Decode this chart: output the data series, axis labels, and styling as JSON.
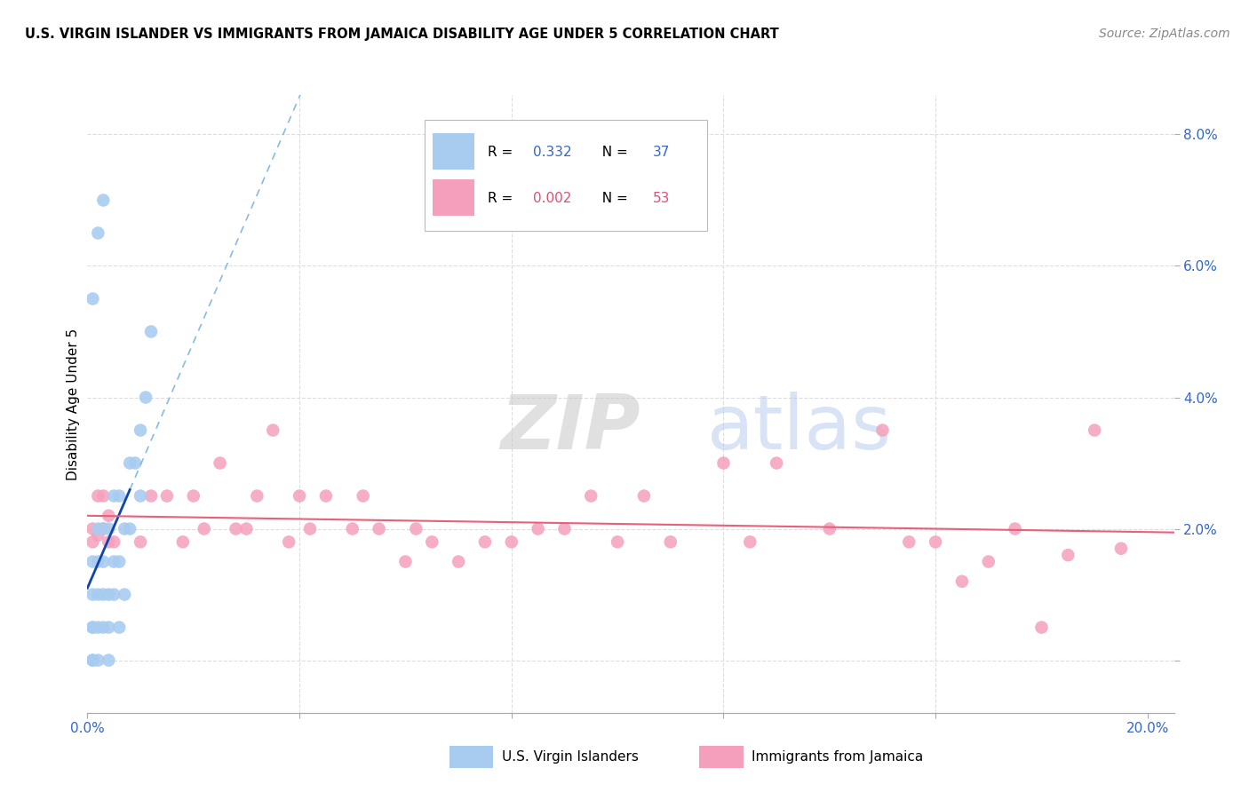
{
  "title": "U.S. VIRGIN ISLANDER VS IMMIGRANTS FROM JAMAICA DISABILITY AGE UNDER 5 CORRELATION CHART",
  "source": "Source: ZipAtlas.com",
  "ylabel": "Disability Age Under 5",
  "blue_R": 0.332,
  "blue_N": 37,
  "pink_R": 0.002,
  "pink_N": 53,
  "blue_label": "U.S. Virgin Islanders",
  "pink_label": "Immigrants from Jamaica",
  "blue_color": "#A8CCF0",
  "pink_color": "#F4A0BC",
  "trend_blue_solid_color": "#1144AA",
  "trend_blue_dash_color": "#88BBDD",
  "trend_pink_color": "#E8607A",
  "blue_x": [
    0.001,
    0.001,
    0.001,
    0.001,
    0.001,
    0.001,
    0.002,
    0.002,
    0.002,
    0.002,
    0.002,
    0.003,
    0.003,
    0.003,
    0.003,
    0.004,
    0.004,
    0.004,
    0.004,
    0.005,
    0.005,
    0.005,
    0.006,
    0.006,
    0.006,
    0.007,
    0.007,
    0.008,
    0.008,
    0.009,
    0.01,
    0.01,
    0.011,
    0.012,
    0.001,
    0.002,
    0.003
  ],
  "blue_y": [
    0.0,
    0.0,
    0.005,
    0.005,
    0.01,
    0.015,
    0.0,
    0.005,
    0.01,
    0.015,
    0.02,
    0.005,
    0.01,
    0.015,
    0.02,
    0.0,
    0.005,
    0.01,
    0.02,
    0.01,
    0.015,
    0.025,
    0.005,
    0.015,
    0.025,
    0.01,
    0.02,
    0.02,
    0.03,
    0.03,
    0.025,
    0.035,
    0.04,
    0.05,
    0.055,
    0.065,
    0.07
  ],
  "pink_x": [
    0.001,
    0.001,
    0.002,
    0.002,
    0.003,
    0.003,
    0.004,
    0.004,
    0.005,
    0.01,
    0.012,
    0.015,
    0.018,
    0.02,
    0.022,
    0.025,
    0.028,
    0.03,
    0.032,
    0.035,
    0.038,
    0.04,
    0.042,
    0.045,
    0.05,
    0.052,
    0.055,
    0.06,
    0.062,
    0.065,
    0.07,
    0.075,
    0.08,
    0.085,
    0.09,
    0.095,
    0.1,
    0.105,
    0.11,
    0.12,
    0.125,
    0.13,
    0.14,
    0.15,
    0.155,
    0.16,
    0.165,
    0.17,
    0.175,
    0.18,
    0.185,
    0.19,
    0.195
  ],
  "pink_y": [
    0.018,
    0.02,
    0.019,
    0.025,
    0.02,
    0.025,
    0.018,
    0.022,
    0.018,
    0.018,
    0.025,
    0.025,
    0.018,
    0.025,
    0.02,
    0.03,
    0.02,
    0.02,
    0.025,
    0.035,
    0.018,
    0.025,
    0.02,
    0.025,
    0.02,
    0.025,
    0.02,
    0.015,
    0.02,
    0.018,
    0.015,
    0.018,
    0.018,
    0.02,
    0.02,
    0.025,
    0.018,
    0.025,
    0.018,
    0.03,
    0.018,
    0.03,
    0.02,
    0.035,
    0.018,
    0.018,
    0.012,
    0.015,
    0.02,
    0.005,
    0.016,
    0.035,
    0.017
  ],
  "xmin": 0.0,
  "xmax": 0.205,
  "ymin": -0.008,
  "ymax": 0.086,
  "watermark_zip": "ZIP",
  "watermark_atlas": "atlas",
  "background_color": "#FFFFFF",
  "grid_color": "#DDDDDD"
}
